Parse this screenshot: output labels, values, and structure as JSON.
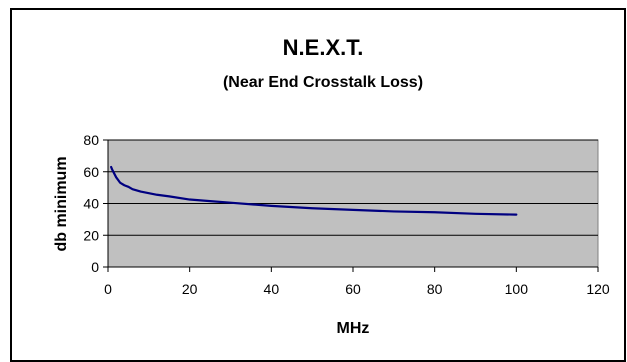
{
  "chart_data": {
    "type": "line",
    "title": "N.E.X.T.",
    "subtitle": "(Near End Crosstalk Loss)",
    "xlabel": "MHz",
    "ylabel": "db minimum",
    "xlim": [
      0,
      120
    ],
    "ylim": [
      0,
      80
    ],
    "x_ticks": [
      "0",
      "20",
      "40",
      "60",
      "80",
      "100",
      "120"
    ],
    "y_ticks": [
      "0",
      "20",
      "40",
      "60",
      "80"
    ],
    "grid": "horizontal",
    "plot_background": "#c0c0c0",
    "line_color": "#000080",
    "series": [
      {
        "x": [
          0.77,
          1,
          2,
          3,
          4,
          5,
          6,
          8,
          10,
          12,
          15,
          20,
          25,
          30,
          40,
          50,
          60,
          70,
          80,
          90,
          100
        ],
        "values": [
          63,
          61.5,
          56.5,
          53,
          51.5,
          50.5,
          49,
          47.5,
          46.5,
          45.5,
          44.5,
          42.5,
          41.5,
          40.5,
          38.5,
          37,
          36,
          35,
          34.5,
          33.5,
          33
        ]
      }
    ]
  }
}
